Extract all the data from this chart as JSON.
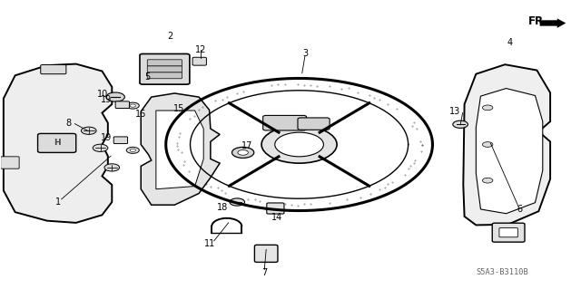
{
  "background_color": "#ffffff",
  "diagram_code": "S5A3-B3110B",
  "fr_label": "FR.",
  "figsize": [
    6.4,
    3.19
  ],
  "dpi": 100,
  "label_data": {
    "1": [
      0.095,
      0.3,
      "left"
    ],
    "2": [
      0.293,
      0.875,
      "center"
    ],
    "3": [
      0.525,
      0.815,
      "center"
    ],
    "4": [
      0.878,
      0.855,
      "center"
    ],
    "5": [
      0.248,
      0.735,
      "left"
    ],
    "6": [
      0.895,
      0.275,
      "center"
    ],
    "7": [
      0.455,
      0.055,
      "center"
    ],
    "8": [
      0.122,
      0.575,
      "right"
    ],
    "10": [
      0.185,
      0.675,
      "right"
    ],
    "11": [
      0.36,
      0.155,
      "center"
    ],
    "12": [
      0.345,
      0.83,
      "center"
    ],
    "13": [
      0.793,
      0.615,
      "right"
    ],
    "14": [
      0.476,
      0.245,
      "center"
    ],
    "15": [
      0.298,
      0.625,
      "left"
    ],
    "16": [
      0.232,
      0.605,
      "left"
    ],
    "17": [
      0.415,
      0.495,
      "left"
    ],
    "18": [
      0.392,
      0.28,
      "right"
    ],
    "19a": [
      0.192,
      0.655,
      "right"
    ],
    "19b": [
      0.192,
      0.525,
      "right"
    ]
  },
  "leader_lines": [
    [
      0.19,
      0.46,
      0.105,
      0.31
    ],
    [
      0.52,
      0.748,
      0.525,
      0.808
    ],
    [
      0.845,
      0.505,
      0.893,
      0.285
    ],
    [
      0.458,
      0.135,
      0.455,
      0.065
    ],
    [
      0.15,
      0.548,
      0.128,
      0.572
    ],
    [
      0.393,
      0.228,
      0.368,
      0.165
    ],
    [
      0.345,
      0.802,
      0.345,
      0.828
    ],
    [
      0.793,
      0.568,
      0.797,
      0.61
    ]
  ]
}
